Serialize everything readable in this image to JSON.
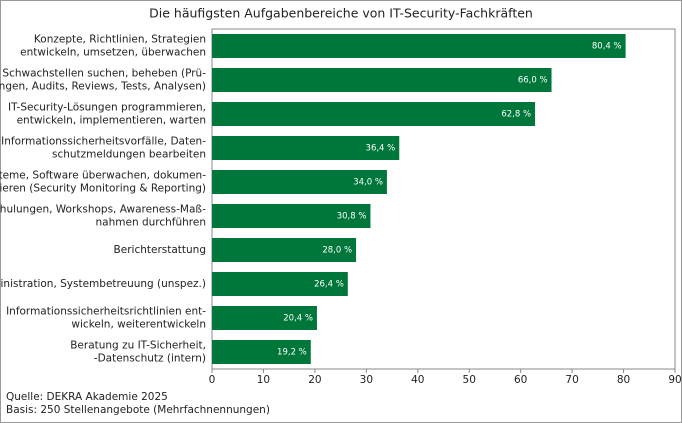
{
  "chart_data": {
    "type": "bar",
    "orientation": "horizontal",
    "title": "Die häufigsten Aufgabenbereiche von IT-Security-Fachkräften",
    "categories": [
      "Konzepte, Richtlinien, Strategien\nentwickeln, umsetzen, überwachen",
      "Schwachstellen suchen, beheben (Prü-\nfungen, Audits, Reviews, Tests, Analysen)",
      "IT-Security-Lösungen programmieren,\nentwickeln, implementieren, warten",
      "Informationssicherheitsvorfälle, Daten-\nschutzmeldungen bearbeiten",
      "Systeme, Software überwachen, dokumen-\ntieren (Security Monitoring & Reporting)",
      "Schulungen, Workshops, Awareness-Maß-\nnahmen durchführen",
      "Berichterstattung",
      "IT-Administration, Systembetreuung (unspez.)",
      "Informationssicherheitsrichtlinien ent-\nwickeln, weiterentwickeln",
      "Beratung zu IT-Sicherheit,\n-Datenschutz (intern)"
    ],
    "values": [
      80.4,
      66.0,
      62.8,
      36.4,
      34.0,
      30.8,
      28.0,
      26.4,
      20.4,
      19.2
    ],
    "value_labels": [
      "80,4 %",
      "66,0 %",
      "62,8 %",
      "36,4 %",
      "34,0 %",
      "30,8 %",
      "28,0 %",
      "26,4 %",
      "20,4 %",
      "19,2 %"
    ],
    "color": "#00773a",
    "xlim": [
      0,
      90
    ],
    "xticks": [
      0,
      10,
      20,
      30,
      40,
      50,
      60,
      70,
      80,
      90
    ],
    "grid": false,
    "notes": [
      "Quelle: DEKRA Akademie 2025",
      "Basis: 250 Stellenangebote (Mehrfachnennungen)"
    ]
  }
}
